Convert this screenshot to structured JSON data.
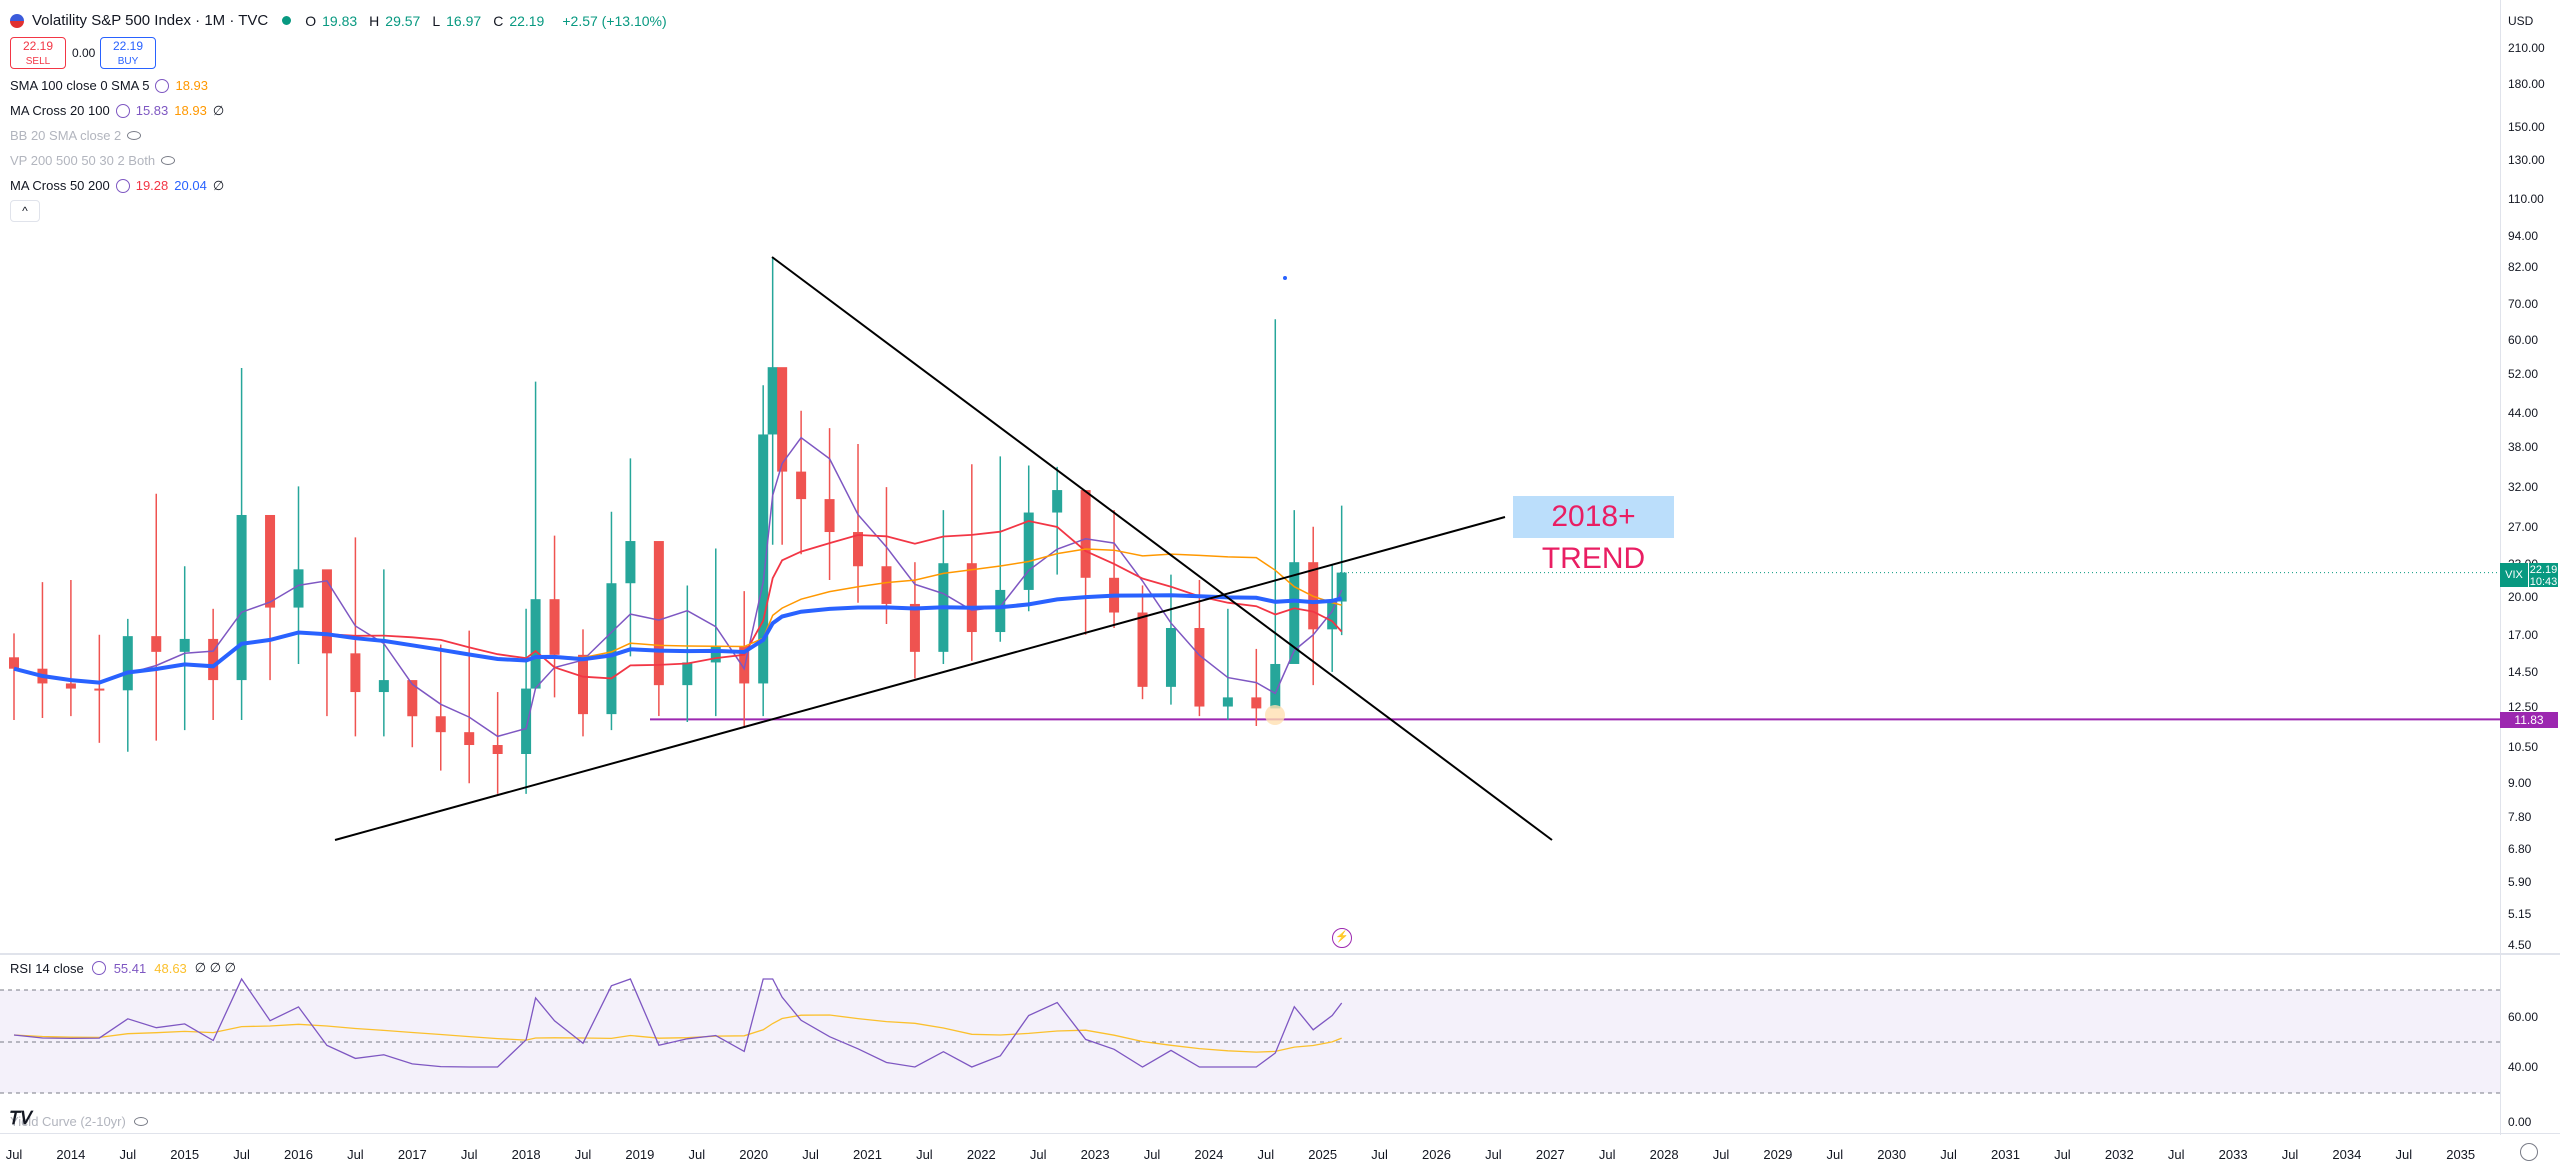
{
  "header": {
    "title": "Volatility S&P 500 Index · 1M · TVC",
    "ohlc": [
      {
        "label": "O",
        "value": "19.83"
      },
      {
        "label": "H",
        "value": "29.57"
      },
      {
        "label": "L",
        "value": "16.97"
      },
      {
        "label": "C",
        "value": "22.19"
      },
      {
        "label": "",
        "value": "+2.57 (+13.10%)"
      }
    ],
    "sell_price": "22.19",
    "sell_label": "SELL",
    "spread": "0.00",
    "buy_price": "22.19",
    "buy_label": "BUY"
  },
  "indicators": [
    {
      "name": "SMA 100 close 0 SMA 5",
      "v1": "18.93",
      "v2": "",
      "extra": "",
      "v1_color": "#ff9800",
      "v2_color": "",
      "dim": false
    },
    {
      "name": "MA Cross 20 100",
      "v1": "15.83",
      "v2": "18.93",
      "extra": "∅",
      "v1_color": "#7e57c2",
      "v2_color": "#ff9800",
      "dim": false
    },
    {
      "name": "BB 20 SMA close 2",
      "v1": "",
      "v2": "",
      "extra": "",
      "v1_color": "",
      "v2_color": "",
      "dim": true
    },
    {
      "name": "VP 200 500 50 30 2 Both",
      "v1": "",
      "v2": "",
      "extra": "",
      "v1_color": "",
      "v2_color": "",
      "dim": true
    },
    {
      "name": "MA Cross 50 200",
      "v1": "19.28",
      "v2": "20.04",
      "extra": "∅",
      "v1_color": "#f23645",
      "v2_color": "#2962ff",
      "dim": false
    }
  ],
  "collapse_glyph": "^",
  "price_axis": {
    "currency": "USD",
    "ticks": [
      "210.00",
      "180.00",
      "150.00",
      "130.00",
      "110.00",
      "94.00",
      "82.00",
      "70.00",
      "60.00",
      "52.00",
      "44.00",
      "38.00",
      "32.00",
      "27.00",
      "23.00",
      "20.00",
      "17.00",
      "14.50",
      "12.50",
      "10.50",
      "9.00",
      "7.80",
      "6.80",
      "5.90",
      "5.15",
      "4.50"
    ],
    "symbol_badge": "VIX",
    "last_price": "22.19",
    "countdown": "10:43",
    "level_badge": "11.83"
  },
  "annotation": {
    "text": "2018+ TREND"
  },
  "rsi": {
    "label": "RSI 14 close",
    "v1": "55.41",
    "v2": "48.63",
    "extra": "∅ ∅ ∅",
    "ticks": [
      "60.00",
      "40.00"
    ],
    "yield_label": "Yield Curve (2-10yr)",
    "yield_value": "0.00"
  },
  "time_axis": [
    "Jul",
    "2014",
    "Jul",
    "2015",
    "Jul",
    "2016",
    "Jul",
    "2017",
    "Jul",
    "2018",
    "Jul",
    "2019",
    "Jul",
    "2020",
    "Jul",
    "2021",
    "Jul",
    "2022",
    "Jul",
    "2023",
    "Jul",
    "2024",
    "Jul",
    "2025",
    "Jul",
    "2026",
    "Jul",
    "2027",
    "Jul",
    "2028",
    "Jul",
    "2029",
    "Jul",
    "2030",
    "Jul",
    "2031",
    "Jul",
    "2032",
    "Jul",
    "2033",
    "Jul",
    "2034",
    "Jul",
    "2035"
  ],
  "colors": {
    "up": "#26a69a",
    "down": "#ef5350",
    "sma100": "#ff9800",
    "ma20": "#7e57c2",
    "ma50": "#f23645",
    "ma200": "#2962ff",
    "level": "#9c27b0",
    "rsi": "#7e57c2",
    "rsi_ma": "#fbc02d"
  },
  "chart_data": {
    "type": "candlestick",
    "title": "Volatility S&P 500 Index · 1M · TVC",
    "y_scale": "log",
    "ylim": [
      4.5,
      210
    ],
    "x": [
      "2013-07",
      "2013-10",
      "2014-01",
      "2014-04",
      "2014-07",
      "2014-10",
      "2015-01",
      "2015-04",
      "2015-07",
      "2015-10",
      "2016-01",
      "2016-04",
      "2016-07",
      "2016-10",
      "2017-01",
      "2017-04",
      "2017-07",
      "2017-10",
      "2018-01",
      "2018-02",
      "2018-04",
      "2018-07",
      "2018-10",
      "2018-12",
      "2019-03",
      "2019-06",
      "2019-09",
      "2019-12",
      "2020-02",
      "2020-03",
      "2020-04",
      "2020-06",
      "2020-09",
      "2020-12",
      "2021-03",
      "2021-06",
      "2021-09",
      "2021-12",
      "2022-03",
      "2022-06",
      "2022-09",
      "2022-12",
      "2023-03",
      "2023-06",
      "2023-09",
      "2023-12",
      "2024-03",
      "2024-06",
      "2024-08",
      "2024-10",
      "2024-12",
      "2025-02",
      "2025-03"
    ],
    "close": [
      14.7,
      13.8,
      13.5,
      13.4,
      16.9,
      15.8,
      16.7,
      14.0,
      28.4,
      19.1,
      22.5,
      15.7,
      13.3,
      14.0,
      11.99,
      11.2,
      10.6,
      10.2,
      13.5,
      19.8,
      15.6,
      12.1,
      21.2,
      25.4,
      13.7,
      15.1,
      16.2,
      13.8,
      40.1,
      53.5,
      34.2,
      30.4,
      26.4,
      22.8,
      19.4,
      15.8,
      23.1,
      17.2,
      20.6,
      28.7,
      31.6,
      21.7,
      18.7,
      13.6,
      17.5,
      12.5,
      13.0,
      12.4,
      15.0,
      23.2,
      17.4,
      19.6,
      22.19
    ],
    "high": [
      17.1,
      21.3,
      21.5,
      17.0,
      18.2,
      31.1,
      22.8,
      19.0,
      53.3,
      28.3,
      32.1,
      22.0,
      25.8,
      22.5,
      13.8,
      16.3,
      17.3,
      13.3,
      19.0,
      50.3,
      26.0,
      17.4,
      28.8,
      36.2,
      19.8,
      21.0,
      24.6,
      20.5,
      49.5,
      85.5,
      46.1,
      44.4,
      41.2,
      38.5,
      32.0,
      23.2,
      29.0,
      35.3,
      36.5,
      35.1,
      34.9,
      29.5,
      29.0,
      21.0,
      22.0,
      21.5,
      19.0,
      16.0,
      65.7,
      29.0,
      27.0,
      23.0,
      29.57
    ],
    "low": [
      11.8,
      11.9,
      12.0,
      10.7,
      10.3,
      10.8,
      11.3,
      11.8,
      11.8,
      14.0,
      15.0,
      12.0,
      11.0,
      11.0,
      10.5,
      9.5,
      9.0,
      8.6,
      8.6,
      13.5,
      13.0,
      11.0,
      11.3,
      15.5,
      12.0,
      11.7,
      12.0,
      11.5,
      12.0,
      25.0,
      25.0,
      24.0,
      21.5,
      19.5,
      17.8,
      14.1,
      15.0,
      15.2,
      16.5,
      18.8,
      22.0,
      17.0,
      17.5,
      12.9,
      12.6,
      12.0,
      11.8,
      11.5,
      14.0,
      15.5,
      13.7,
      14.5,
      16.97
    ],
    "lines": [
      {
        "name": "SMA 100 close 0 SMA 5",
        "last": 18.93
      },
      {
        "name": "MA Cross 20 100",
        "last": [
          15.83,
          18.93
        ]
      },
      {
        "name": "MA Cross 50 200",
        "last": [
          19.28,
          20.04
        ]
      },
      {
        "name": "RSI 14 close",
        "last": [
          55.41,
          48.63
        ]
      }
    ],
    "horizontal_level": 11.83
  }
}
